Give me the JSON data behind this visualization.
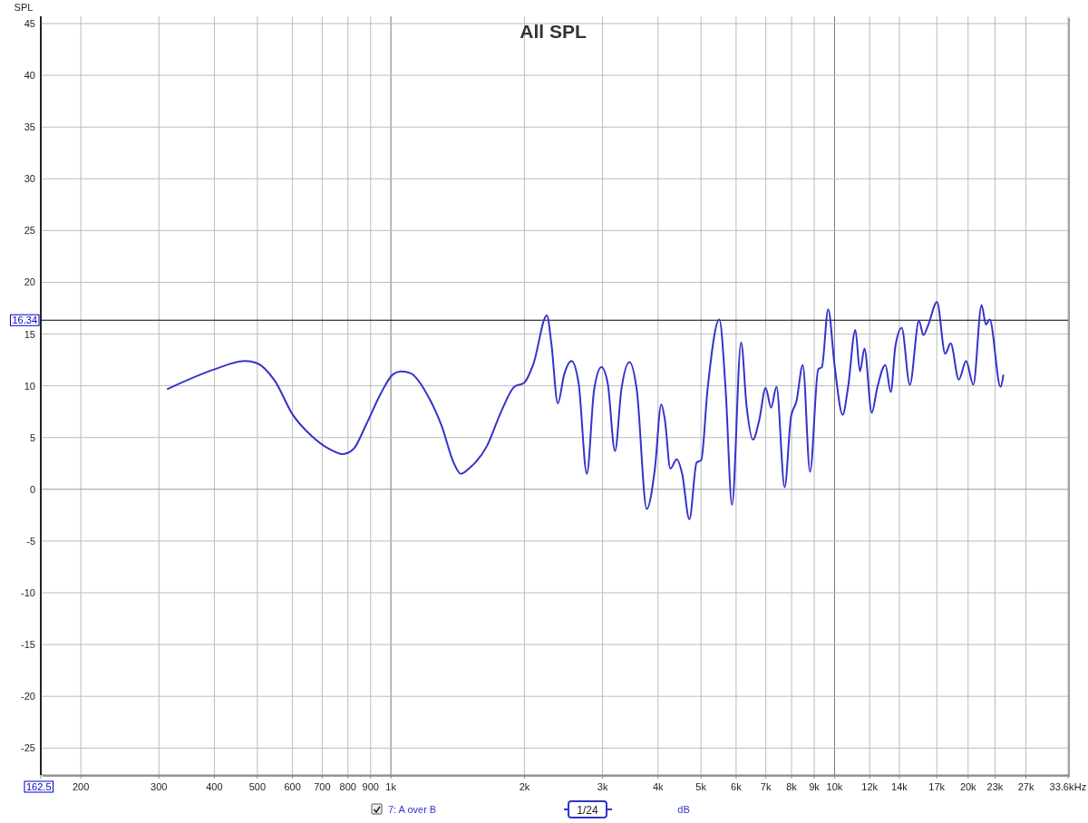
{
  "chart_data": {
    "type": "line",
    "title": "All SPL",
    "ylabel": "SPL",
    "xlabel": "Hz",
    "log": "x",
    "grid": true,
    "legend": "bottom",
    "marker": "none",
    "line_style": "solid",
    "xlim": [
      162.5,
      33600
    ],
    "ylim": [
      -27.6,
      45.7
    ],
    "xticks": [
      {
        "value": 162.5,
        "label": "162.5"
      },
      200,
      300,
      400,
      500,
      600,
      700,
      800,
      900,
      {
        "value": 1000,
        "label": "1k"
      },
      {
        "value": 2000,
        "label": "2k"
      },
      {
        "value": 3000,
        "label": "3k"
      },
      {
        "value": 4000,
        "label": "4k"
      },
      {
        "value": 5000,
        "label": "5k"
      },
      {
        "value": 6000,
        "label": "6k"
      },
      {
        "value": 7000,
        "label": "7k"
      },
      {
        "value": 8000,
        "label": "8k"
      },
      {
        "value": 9000,
        "label": "9k"
      },
      {
        "value": 10000,
        "label": "10k"
      },
      {
        "value": 12000,
        "label": "12k"
      },
      {
        "value": 14000,
        "label": "14k"
      },
      {
        "value": 17000,
        "label": "17k"
      },
      {
        "value": 20000,
        "label": "20k"
      },
      {
        "value": 23000,
        "label": "23k"
      },
      {
        "value": 27000,
        "label": "27k"
      },
      {
        "value": 33600,
        "label": "33.6k"
      }
    ],
    "yticks": [
      -25,
      -20,
      -15,
      -10,
      -5,
      0,
      5,
      10,
      15,
      20,
      25,
      30,
      35,
      40,
      45
    ],
    "ref_lines": [
      {
        "axis": "y",
        "value": 16.34,
        "label": "16.34",
        "color": "#000000"
      }
    ],
    "annotations": [
      "1/24",
      "dB"
    ],
    "series": [
      {
        "name": "7: A over B",
        "color": "#3333cc",
        "x": [
          314,
          401,
          469,
          498,
          547,
          601,
          661,
          726,
          779,
          824,
          876,
          950,
          1010,
          1053,
          1109,
          1202,
          1302,
          1384,
          1437,
          1499,
          1647,
          1776,
          1897,
          1998,
          2095,
          2247,
          2301,
          2378,
          2458,
          2553,
          2650,
          2765,
          2871,
          2982,
          3082,
          3200,
          3307,
          3450,
          3583,
          3773,
          3936,
          4068,
          4146,
          4265,
          4408,
          4534,
          4708,
          4889,
          5005,
          5172,
          5499,
          5683,
          5873,
          6157,
          6333,
          6546,
          6766,
          6993,
          7194,
          7399,
          7719,
          7977,
          8206,
          8481,
          8806,
          9189,
          9363,
          9676,
          10000,
          10430,
          10730,
          11140,
          11410,
          11680,
          12130,
          12480,
          13020,
          13390,
          13710,
          14170,
          14780,
          15500,
          15860,
          16240,
          17020,
          17760,
          18270,
          19060,
          19790,
          20550,
          21450,
          21950,
          22370,
          23670,
          24010
        ],
        "values": [
          9.7,
          11.6,
          12.4,
          12.2,
          10.5,
          7.2,
          5.2,
          3.9,
          3.4,
          3.9,
          6.1,
          9.3,
          11.1,
          11.4,
          11.2,
          9.3,
          6.1,
          2.6,
          1.5,
          2.0,
          4.2,
          7.6,
          9.9,
          10.3,
          12.1,
          16.8,
          14.0,
          8.3,
          11.1,
          12.4,
          10.2,
          1.5,
          9.6,
          11.8,
          10.2,
          3.7,
          9.6,
          12.3,
          9.6,
          -1.9,
          2.0,
          8.2,
          6.7,
          2.0,
          2.9,
          1.5,
          -2.9,
          2.6,
          2.8,
          9.6,
          16.4,
          9.6,
          -1.5,
          14.2,
          8.1,
          4.8,
          6.7,
          9.8,
          7.9,
          9.9,
          0.2,
          7.0,
          8.5,
          12.0,
          1.7,
          11.6,
          11.8,
          17.4,
          12.0,
          7.2,
          9.9,
          15.4,
          11.4,
          13.6,
          7.4,
          9.8,
          12.0,
          9.4,
          13.8,
          15.6,
          10.1,
          16.3,
          14.9,
          15.8,
          18.1,
          13.1,
          14.1,
          10.6,
          12.4,
          10.1,
          17.8,
          15.9,
          16.4,
          9.9,
          11.0
        ]
      }
    ]
  }
}
